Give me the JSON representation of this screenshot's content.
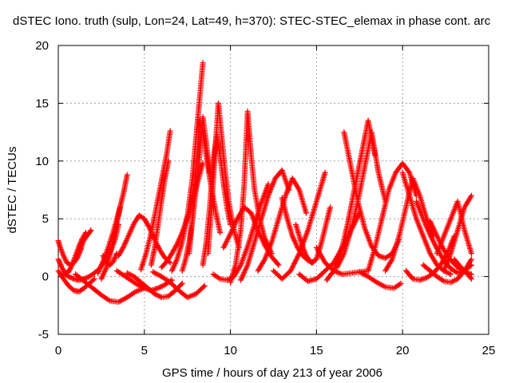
{
  "chart_data": {
    "type": "scatter",
    "title": "dSTEC Iono. truth (sulp, Lon=24, Lat=49, h=370): STEC-STEC_elemax in phase cont. arc",
    "xlabel": "GPS time / hours of day 213 of year 2006",
    "ylabel": "dSTEC  / TECUs",
    "xlim": [
      0,
      25
    ],
    "ylim": [
      -5,
      20
    ],
    "xticks": [
      "0",
      "5",
      "10",
      "15",
      "20",
      "25"
    ],
    "yticks": [
      "-5",
      "0",
      "5",
      "10",
      "15",
      "20"
    ],
    "grid": true,
    "marker": "+",
    "series_color": "#ff0000",
    "arcs": [
      {
        "x": [
          0.0,
          0.1,
          0.3,
          0.5,
          0.7,
          0.9,
          1.1,
          1.3,
          1.4,
          1.6,
          1.8,
          1.9
        ],
        "y": [
          3.1,
          2.6,
          1.8,
          1.2,
          1.0,
          1.2,
          1.6,
          2.3,
          2.9,
          3.4,
          3.8,
          4.0
        ]
      },
      {
        "x": [
          0.0,
          0.2,
          0.4,
          0.6,
          0.8,
          1.0,
          1.2,
          1.4,
          1.6
        ],
        "y": [
          1.5,
          0.8,
          0.3,
          0.4,
          1.0,
          1.8,
          2.6,
          3.3,
          3.8
        ]
      },
      {
        "x": [
          0.0,
          0.3,
          0.6,
          0.9,
          1.2,
          1.5,
          1.8,
          2.1
        ],
        "y": [
          0.5,
          -0.2,
          -0.8,
          -1.2,
          -1.3,
          -1.0,
          -0.6,
          -0.2
        ]
      },
      {
        "x": [
          0.3,
          0.6,
          0.9,
          1.2,
          1.5,
          1.8,
          2.1,
          2.4,
          2.7,
          3.0,
          3.3,
          3.5
        ],
        "y": [
          0.3,
          0.0,
          -0.2,
          -0.3,
          -0.2,
          0.0,
          0.3,
          0.7,
          1.3,
          2.1,
          3.2,
          4.5
        ]
      },
      {
        "x": [
          1.0,
          1.5,
          2.0,
          2.5,
          3.0,
          3.5,
          4.0,
          4.5,
          5.0
        ],
        "y": [
          0.2,
          -0.4,
          -1.0,
          -1.6,
          -2.1,
          -2.2,
          -1.8,
          -1.3,
          -1.0
        ]
      },
      {
        "x": [
          2.3,
          2.6,
          2.9,
          3.2,
          3.5,
          3.8,
          4.0
        ],
        "y": [
          0.3,
          1.3,
          2.5,
          3.9,
          5.5,
          7.3,
          8.8
        ]
      },
      {
        "x": [
          2.5,
          2.8,
          3.0,
          3.2,
          3.4,
          3.6
        ],
        "y": [
          -0.2,
          0.8,
          1.9,
          3.2,
          4.6,
          6.0
        ]
      },
      {
        "x": [
          2.6,
          2.8,
          3.0,
          3.2,
          3.4
        ],
        "y": [
          1.8,
          1.2,
          1.0,
          1.3,
          2.0
        ]
      },
      {
        "x": [
          3.5,
          3.8,
          4.1,
          4.4,
          4.7,
          5.0,
          5.3,
          5.6,
          5.9,
          6.2,
          6.5
        ],
        "y": [
          1.8,
          2.6,
          3.6,
          4.6,
          5.3,
          5.0,
          4.2,
          3.2,
          2.3,
          1.6,
          1.2
        ]
      },
      {
        "x": [
          3.4,
          3.8,
          4.2,
          4.6,
          5.0,
          5.4,
          5.8,
          6.2,
          6.6
        ],
        "y": [
          0.5,
          0.1,
          -0.3,
          -0.7,
          -1.0,
          -1.2,
          -1.0,
          -0.7,
          -0.3
        ]
      },
      {
        "x": [
          4.0,
          4.4,
          4.8,
          5.2,
          5.6,
          6.0,
          6.4,
          6.8,
          7.2
        ],
        "y": [
          0.3,
          0.0,
          -0.5,
          -1.0,
          -1.5,
          -1.8,
          -1.7,
          -1.2,
          -0.6
        ]
      },
      {
        "x": [
          4.8,
          5.1,
          5.4,
          5.7,
          6.0,
          6.3,
          6.5
        ],
        "y": [
          0.6,
          2.0,
          3.8,
          6.0,
          8.3,
          10.6,
          12.6
        ]
      },
      {
        "x": [
          5.4,
          5.6,
          5.8,
          6.0,
          6.2,
          6.4
        ],
        "y": [
          1.0,
          2.5,
          4.5,
          6.6,
          8.5,
          10.0
        ]
      },
      {
        "x": [
          5.5,
          6.0,
          6.5,
          7.0,
          7.5,
          8.0,
          8.5
        ],
        "y": [
          0.4,
          0.0,
          -0.5,
          -1.2,
          -1.8,
          -1.5,
          -0.8
        ]
      },
      {
        "x": [
          6.0,
          6.3,
          6.6,
          6.9,
          7.2,
          7.5,
          7.8,
          8.1,
          8.4
        ],
        "y": [
          0.8,
          1.3,
          2.0,
          2.8,
          3.8,
          5.1,
          6.6,
          8.2,
          9.8
        ]
      },
      {
        "x": [
          6.6,
          6.9,
          7.2,
          7.5,
          7.8,
          8.0,
          8.2,
          8.4
        ],
        "y": [
          0.5,
          1.5,
          3.0,
          5.2,
          8.6,
          12.0,
          15.2,
          18.5
        ]
      },
      {
        "x": [
          7.2,
          7.4,
          7.6,
          7.8,
          8.0,
          8.2,
          8.4,
          8.6,
          8.8
        ],
        "y": [
          0.5,
          1.5,
          3.0,
          5.0,
          7.5,
          10.3,
          13.8,
          11.5,
          9.0
        ]
      },
      {
        "x": [
          7.6,
          7.8,
          8.0,
          8.2,
          8.4,
          8.6,
          8.8,
          9.0,
          9.2,
          9.4
        ],
        "y": [
          2.0,
          5.0,
          9.0,
          13.5,
          12.5,
          10.5,
          8.5,
          6.8,
          5.2,
          3.8
        ]
      },
      {
        "x": [
          8.4,
          8.6,
          8.8,
          9.0,
          9.2,
          9.4,
          9.6,
          9.8,
          10.0
        ],
        "y": [
          1.0,
          3.0,
          6.0,
          10.0,
          12.3,
          10.5,
          8.0,
          6.0,
          4.5
        ]
      },
      {
        "x": [
          8.7,
          8.9,
          9.1,
          9.3,
          9.5,
          9.7,
          9.9,
          10.1,
          10.3,
          10.5
        ],
        "y": [
          2.0,
          6.0,
          10.5,
          15.0,
          12.0,
          9.0,
          6.5,
          4.8,
          3.5,
          2.5
        ]
      },
      {
        "x": [
          9.0,
          9.4,
          9.8,
          10.2,
          10.6,
          11.0,
          11.4,
          11.8,
          12.2
        ],
        "y": [
          0.2,
          -0.2,
          -0.3,
          0.0,
          1.0,
          2.6,
          4.5,
          6.4,
          8.0
        ]
      },
      {
        "x": [
          9.6,
          10.0,
          10.4,
          10.8,
          11.2,
          11.6,
          12.0,
          12.4,
          12.8
        ],
        "y": [
          2.5,
          3.7,
          5.0,
          6.0,
          5.5,
          4.0,
          2.7,
          1.7,
          1.0
        ]
      },
      {
        "x": [
          10.0,
          10.3,
          10.6,
          10.8,
          11.0,
          11.2,
          11.4,
          11.7,
          12.0,
          12.4
        ],
        "y": [
          -0.5,
          1.0,
          4.0,
          8.0,
          14.3,
          10.5,
          7.5,
          5.0,
          3.3,
          2.0
        ]
      },
      {
        "x": [
          10.6,
          11.0,
          11.4,
          11.8,
          12.2,
          12.6,
          13.0,
          13.4
        ],
        "y": [
          -0.3,
          1.0,
          3.0,
          5.0,
          7.0,
          8.5,
          9.2,
          7.5
        ]
      },
      {
        "x": [
          11.6,
          12.0,
          12.4,
          12.8,
          13.2,
          13.6,
          14.0,
          14.4
        ],
        "y": [
          0.5,
          1.5,
          3.0,
          5.0,
          7.0,
          8.5,
          7.5,
          5.5
        ]
      },
      {
        "x": [
          12.5,
          13.0,
          13.5,
          14.0,
          14.5,
          15.0,
          15.5
        ],
        "y": [
          0.5,
          -0.2,
          0.5,
          2.0,
          4.0,
          6.5,
          9.0
        ]
      },
      {
        "x": [
          13.0,
          13.3,
          13.6,
          13.9,
          14.2,
          14.5,
          14.8
        ],
        "y": [
          6.8,
          5.0,
          3.5,
          2.5,
          1.8,
          1.4,
          1.2
        ]
      },
      {
        "x": [
          13.8,
          14.1,
          14.4,
          14.7,
          15.0,
          15.3,
          15.6,
          15.8
        ],
        "y": [
          4.5,
          3.0,
          1.8,
          1.2,
          1.5,
          3.0,
          4.8,
          6.0
        ]
      },
      {
        "x": [
          14.0,
          14.5,
          15.0,
          15.5,
          16.0,
          16.5,
          17.0,
          17.5
        ],
        "y": [
          0.2,
          -0.4,
          -0.2,
          0.5,
          1.2,
          2.5,
          4.0,
          5.5
        ]
      },
      {
        "x": [
          15.0,
          15.5,
          16.0,
          16.5,
          17.0,
          17.5,
          18.0
        ],
        "y": [
          2.5,
          1.2,
          0.5,
          0.2,
          0.3,
          0.4,
          0.5
        ]
      },
      {
        "x": [
          15.6,
          16.0,
          16.4,
          16.8,
          17.2,
          17.6,
          18.0,
          18.4
        ],
        "y": [
          -0.3,
          0.5,
          2.0,
          4.5,
          7.5,
          10.5,
          13.5,
          10.5
        ]
      },
      {
        "x": [
          16.2,
          16.6,
          17.0,
          17.4,
          17.8,
          18.2,
          18.6,
          19.0
        ],
        "y": [
          0.8,
          2.0,
          4.0,
          6.5,
          9.5,
          12.5,
          9.0,
          6.5
        ]
      },
      {
        "x": [
          16.6,
          17.0,
          17.4,
          17.8,
          18.2,
          18.6,
          19.0,
          19.4,
          19.8
        ],
        "y": [
          12.5,
          9.5,
          6.5,
          4.2,
          2.6,
          1.8,
          1.6,
          2.0,
          3.2
        ]
      },
      {
        "x": [
          17.5,
          18.0,
          18.5,
          19.0,
          19.5,
          19.9
        ],
        "y": [
          0.4,
          0.0,
          -0.5,
          -0.9,
          -1.0,
          -0.6
        ]
      },
      {
        "x": [
          18.0,
          18.4,
          18.8,
          19.2,
          19.6,
          20.0,
          20.4,
          20.8
        ],
        "y": [
          0.5,
          2.5,
          5.0,
          7.5,
          9.0,
          9.8,
          9.0,
          7.0
        ]
      },
      {
        "x": [
          19.0,
          19.4,
          19.8,
          20.2,
          20.6,
          21.0,
          21.4,
          21.8
        ],
        "y": [
          0.5,
          1.5,
          3.5,
          6.0,
          8.5,
          7.0,
          5.0,
          3.5
        ]
      },
      {
        "x": [
          20.0,
          20.4,
          20.8,
          21.2,
          21.6,
          22.0,
          22.4,
          22.8
        ],
        "y": [
          9.0,
          7.0,
          5.0,
          3.5,
          2.0,
          1.0,
          0.5,
          0.2
        ]
      },
      {
        "x": [
          20.2,
          20.6,
          21.0,
          21.4,
          21.8,
          22.2,
          22.6,
          23.0
        ],
        "y": [
          0.5,
          -0.2,
          -0.3,
          -0.1,
          0.3,
          1.0,
          2.0,
          3.5
        ]
      },
      {
        "x": [
          20.8,
          21.2,
          21.6,
          22.0,
          22.4,
          22.8,
          23.2,
          23.6,
          24.0
        ],
        "y": [
          6.5,
          5.0,
          3.6,
          2.4,
          1.4,
          0.7,
          0.3,
          0.5,
          1.0
        ]
      },
      {
        "x": [
          21.2,
          21.6,
          22.0,
          22.4,
          22.8,
          23.2,
          23.6,
          24.0
        ],
        "y": [
          1.0,
          0.5,
          0.0,
          -0.4,
          -0.5,
          -0.2,
          0.5,
          1.5
        ]
      },
      {
        "x": [
          21.6,
          22.0,
          22.4,
          22.8,
          23.2,
          23.6,
          24.0
        ],
        "y": [
          4.8,
          3.5,
          2.3,
          1.4,
          0.8,
          0.4,
          0.2
        ]
      },
      {
        "x": [
          22.0,
          22.4,
          22.8,
          23.2,
          23.6,
          24.0
        ],
        "y": [
          2.0,
          3.5,
          5.0,
          6.5,
          4.0,
          2.0
        ]
      },
      {
        "x": [
          22.4,
          22.8,
          23.2,
          23.6,
          24.0
        ],
        "y": [
          0.5,
          2.0,
          4.0,
          6.0,
          7.0
        ]
      },
      {
        "x": [
          23.0,
          23.4,
          23.8,
          24.0
        ],
        "y": [
          1.5,
          0.8,
          0.2,
          -0.2
        ]
      }
    ]
  }
}
